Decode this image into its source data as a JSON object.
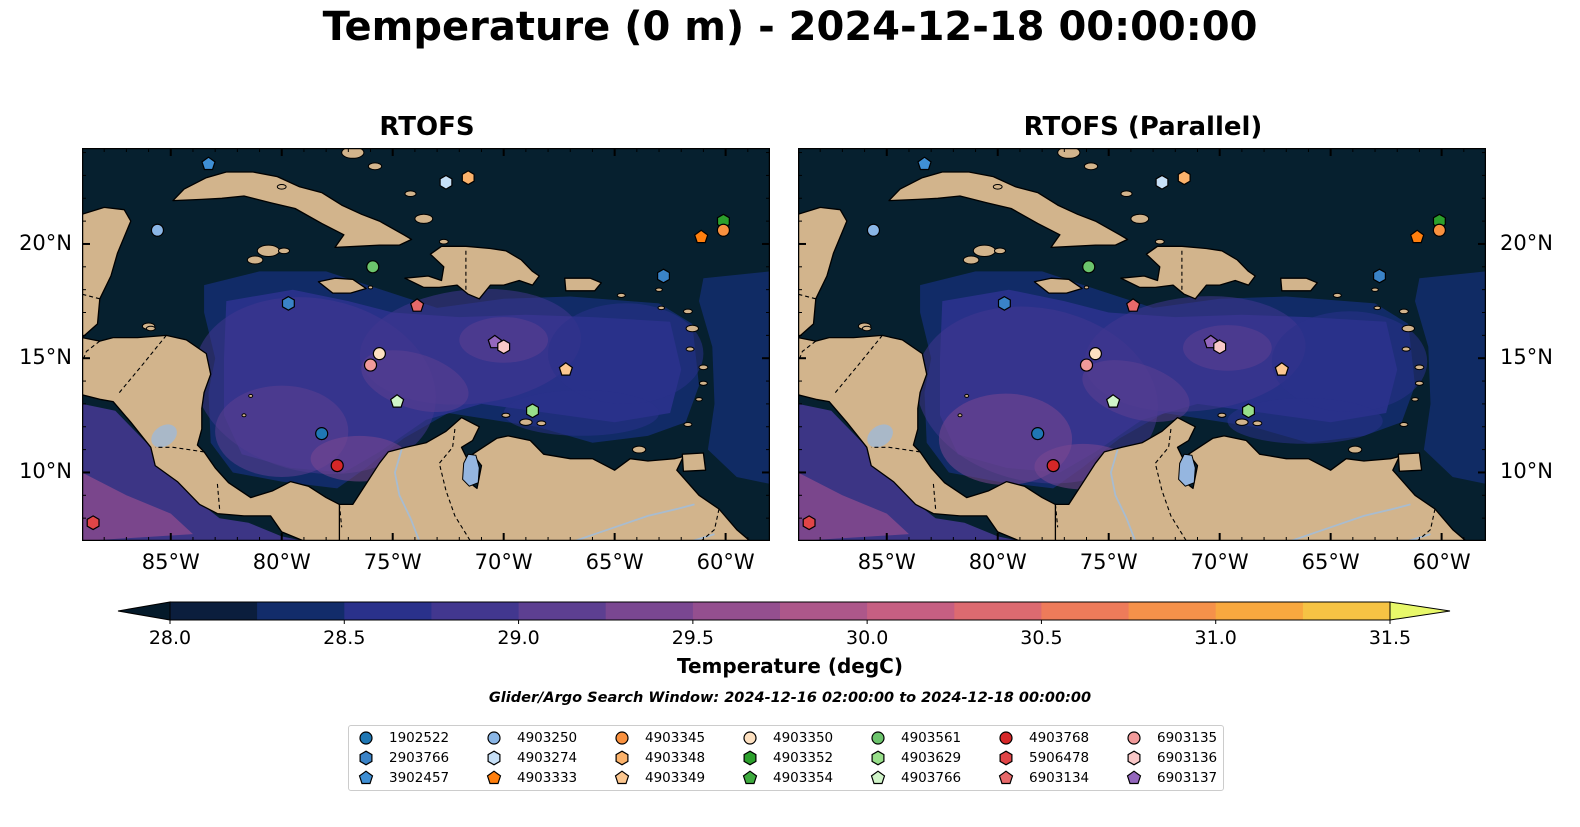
{
  "title": "Temperature (0 m) - 2024-12-18 00:00:00",
  "panels": [
    {
      "title": "RTOFS"
    },
    {
      "title": "RTOFS (Parallel)"
    }
  ],
  "map": {
    "lon_ticks": [
      "85°W",
      "80°W",
      "75°W",
      "70°W",
      "65°W",
      "60°W"
    ],
    "lon_values": [
      -85,
      -80,
      -75,
      -70,
      -65,
      -60
    ],
    "lat_ticks": [
      "20°N",
      "15°N",
      "10°N"
    ],
    "lat_values": [
      20,
      15,
      10
    ],
    "extent": {
      "lon_min": -89,
      "lon_max": -58,
      "lat_min": 7,
      "lat_max": 24.2
    },
    "colors": {
      "ocean_base": "#06202f",
      "land": "#d2b48c",
      "lakes": "#95b6e0",
      "rivers": "#a8bcd0"
    }
  },
  "colorbar": {
    "label": "Temperature (degC)",
    "ticks": [
      "28.0",
      "28.5",
      "29.0",
      "29.5",
      "30.0",
      "30.5",
      "31.0",
      "31.5"
    ],
    "min": 28.0,
    "max": 31.5,
    "step": 0.25,
    "colors": [
      "#0b1e3d",
      "#122c6a",
      "#2a318b",
      "#42378f",
      "#5d3f91",
      "#7a4791",
      "#944f8f",
      "#ad578a",
      "#c65f82",
      "#dd6a70",
      "#ee7b5a",
      "#f5914a",
      "#f8a83f",
      "#f6c344",
      "#f3dc53"
    ],
    "under_color": "#041a2a",
    "over_color": "#e8f86a"
  },
  "search_window": "Glider/Argo Search Window: 2024-12-16 02:00:00 to 2024-12-18 00:00:00",
  "legend": [
    {
      "id": "1902522",
      "marker": "circle",
      "color": "#1f77b4"
    },
    {
      "id": "2903766",
      "marker": "hexagon",
      "color": "#3a83c7"
    },
    {
      "id": "3902457",
      "marker": "pentagon",
      "color": "#3f8fd4"
    },
    {
      "id": "4903250",
      "marker": "circle",
      "color": "#8ab6e6"
    },
    {
      "id": "4903274",
      "marker": "hexagon",
      "color": "#c7e0f7"
    },
    {
      "id": "4903333",
      "marker": "pentagon",
      "color": "#ff7f0e"
    },
    {
      "id": "4903345",
      "marker": "circle",
      "color": "#f9913f"
    },
    {
      "id": "4903348",
      "marker": "hexagon",
      "color": "#fbb26b"
    },
    {
      "id": "4903349",
      "marker": "pentagon",
      "color": "#fcc790"
    },
    {
      "id": "4903350",
      "marker": "circle",
      "color": "#fde0c0"
    },
    {
      "id": "4903352",
      "marker": "hexagon",
      "color": "#2ca02c"
    },
    {
      "id": "4903354",
      "marker": "pentagon",
      "color": "#3fab3f"
    },
    {
      "id": "4903561",
      "marker": "circle",
      "color": "#6cc46c"
    },
    {
      "id": "4903629",
      "marker": "hexagon",
      "color": "#98df8a"
    },
    {
      "id": "4903766",
      "marker": "pentagon",
      "color": "#d0f4c8"
    },
    {
      "id": "4903768",
      "marker": "circle",
      "color": "#d62728"
    },
    {
      "id": "5906478",
      "marker": "hexagon",
      "color": "#e04547"
    },
    {
      "id": "6903134",
      "marker": "pentagon",
      "color": "#e8696a"
    },
    {
      "id": "6903135",
      "marker": "circle",
      "color": "#f19a9a"
    },
    {
      "id": "6903136",
      "marker": "hexagon",
      "color": "#f9c8c8"
    },
    {
      "id": "6903137",
      "marker": "pentagon",
      "color": "#9467bd"
    }
  ],
  "observations": [
    {
      "id": "4903250",
      "lon": -85.6,
      "lat": 20.6
    },
    {
      "id": "3902457",
      "lon": -83.3,
      "lat": 23.5
    },
    {
      "id": "4903274",
      "lon": -72.6,
      "lat": 22.7
    },
    {
      "id": "4903348",
      "lon": -71.6,
      "lat": 22.9
    },
    {
      "id": "4903352",
      "lon": -60.1,
      "lat": 21.0
    },
    {
      "id": "4903345",
      "lon": -60.1,
      "lat": 20.6
    },
    {
      "id": "4903333",
      "lon": -61.1,
      "lat": 20.3
    },
    {
      "id": "4903561",
      "lon": -75.9,
      "lat": 19.0
    },
    {
      "id": "2903766",
      "lon": -62.8,
      "lat": 18.6
    },
    {
      "id": "2903766",
      "lon": -79.7,
      "lat": 17.4
    },
    {
      "id": "6903134",
      "lon": -73.9,
      "lat": 17.3
    },
    {
      "id": "6903137",
      "lon": -70.4,
      "lat": 15.7
    },
    {
      "id": "6903136",
      "lon": -70.0,
      "lat": 15.5
    },
    {
      "id": "4903350",
      "lon": -75.6,
      "lat": 15.2
    },
    {
      "id": "6903135",
      "lon": -76.0,
      "lat": 14.7
    },
    {
      "id": "4903349",
      "lon": -67.2,
      "lat": 14.5
    },
    {
      "id": "4903766",
      "lon": -74.8,
      "lat": 13.1
    },
    {
      "id": "4903629",
      "lon": -68.7,
      "lat": 12.7
    },
    {
      "id": "1902522",
      "lon": -78.2,
      "lat": 11.7
    },
    {
      "id": "4903768",
      "lon": -77.5,
      "lat": 10.3
    },
    {
      "id": "5906478",
      "lon": -88.5,
      "lat": 7.8
    }
  ]
}
